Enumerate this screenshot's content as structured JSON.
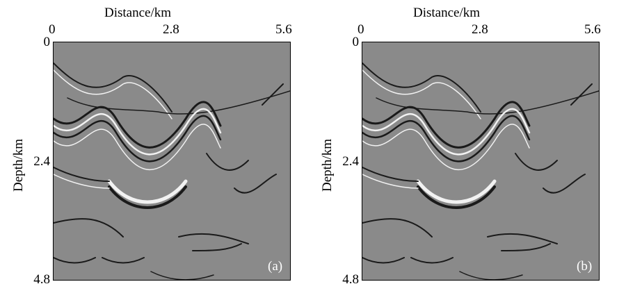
{
  "panels": [
    {
      "id": "a",
      "x_axis_title": "Distance/km",
      "x_ticks": [
        "0",
        "2.8",
        "5.6"
      ],
      "y_axis_title": "Depth/km",
      "y_ticks": [
        "0",
        "2.4",
        "4.8"
      ],
      "panel_label": "(a)"
    },
    {
      "id": "b",
      "x_axis_title": "Distance/km",
      "x_ticks": [
        "0",
        "2.8",
        "5.6"
      ],
      "y_axis_title": "Depth/km",
      "y_ticks": [
        "0",
        "2.4",
        "4.8"
      ],
      "panel_label": "(b)"
    }
  ],
  "colors": {
    "background": "#8a8a8a",
    "reflector_dark": "#1a1a1a",
    "reflector_light": "#f2f2f2"
  }
}
